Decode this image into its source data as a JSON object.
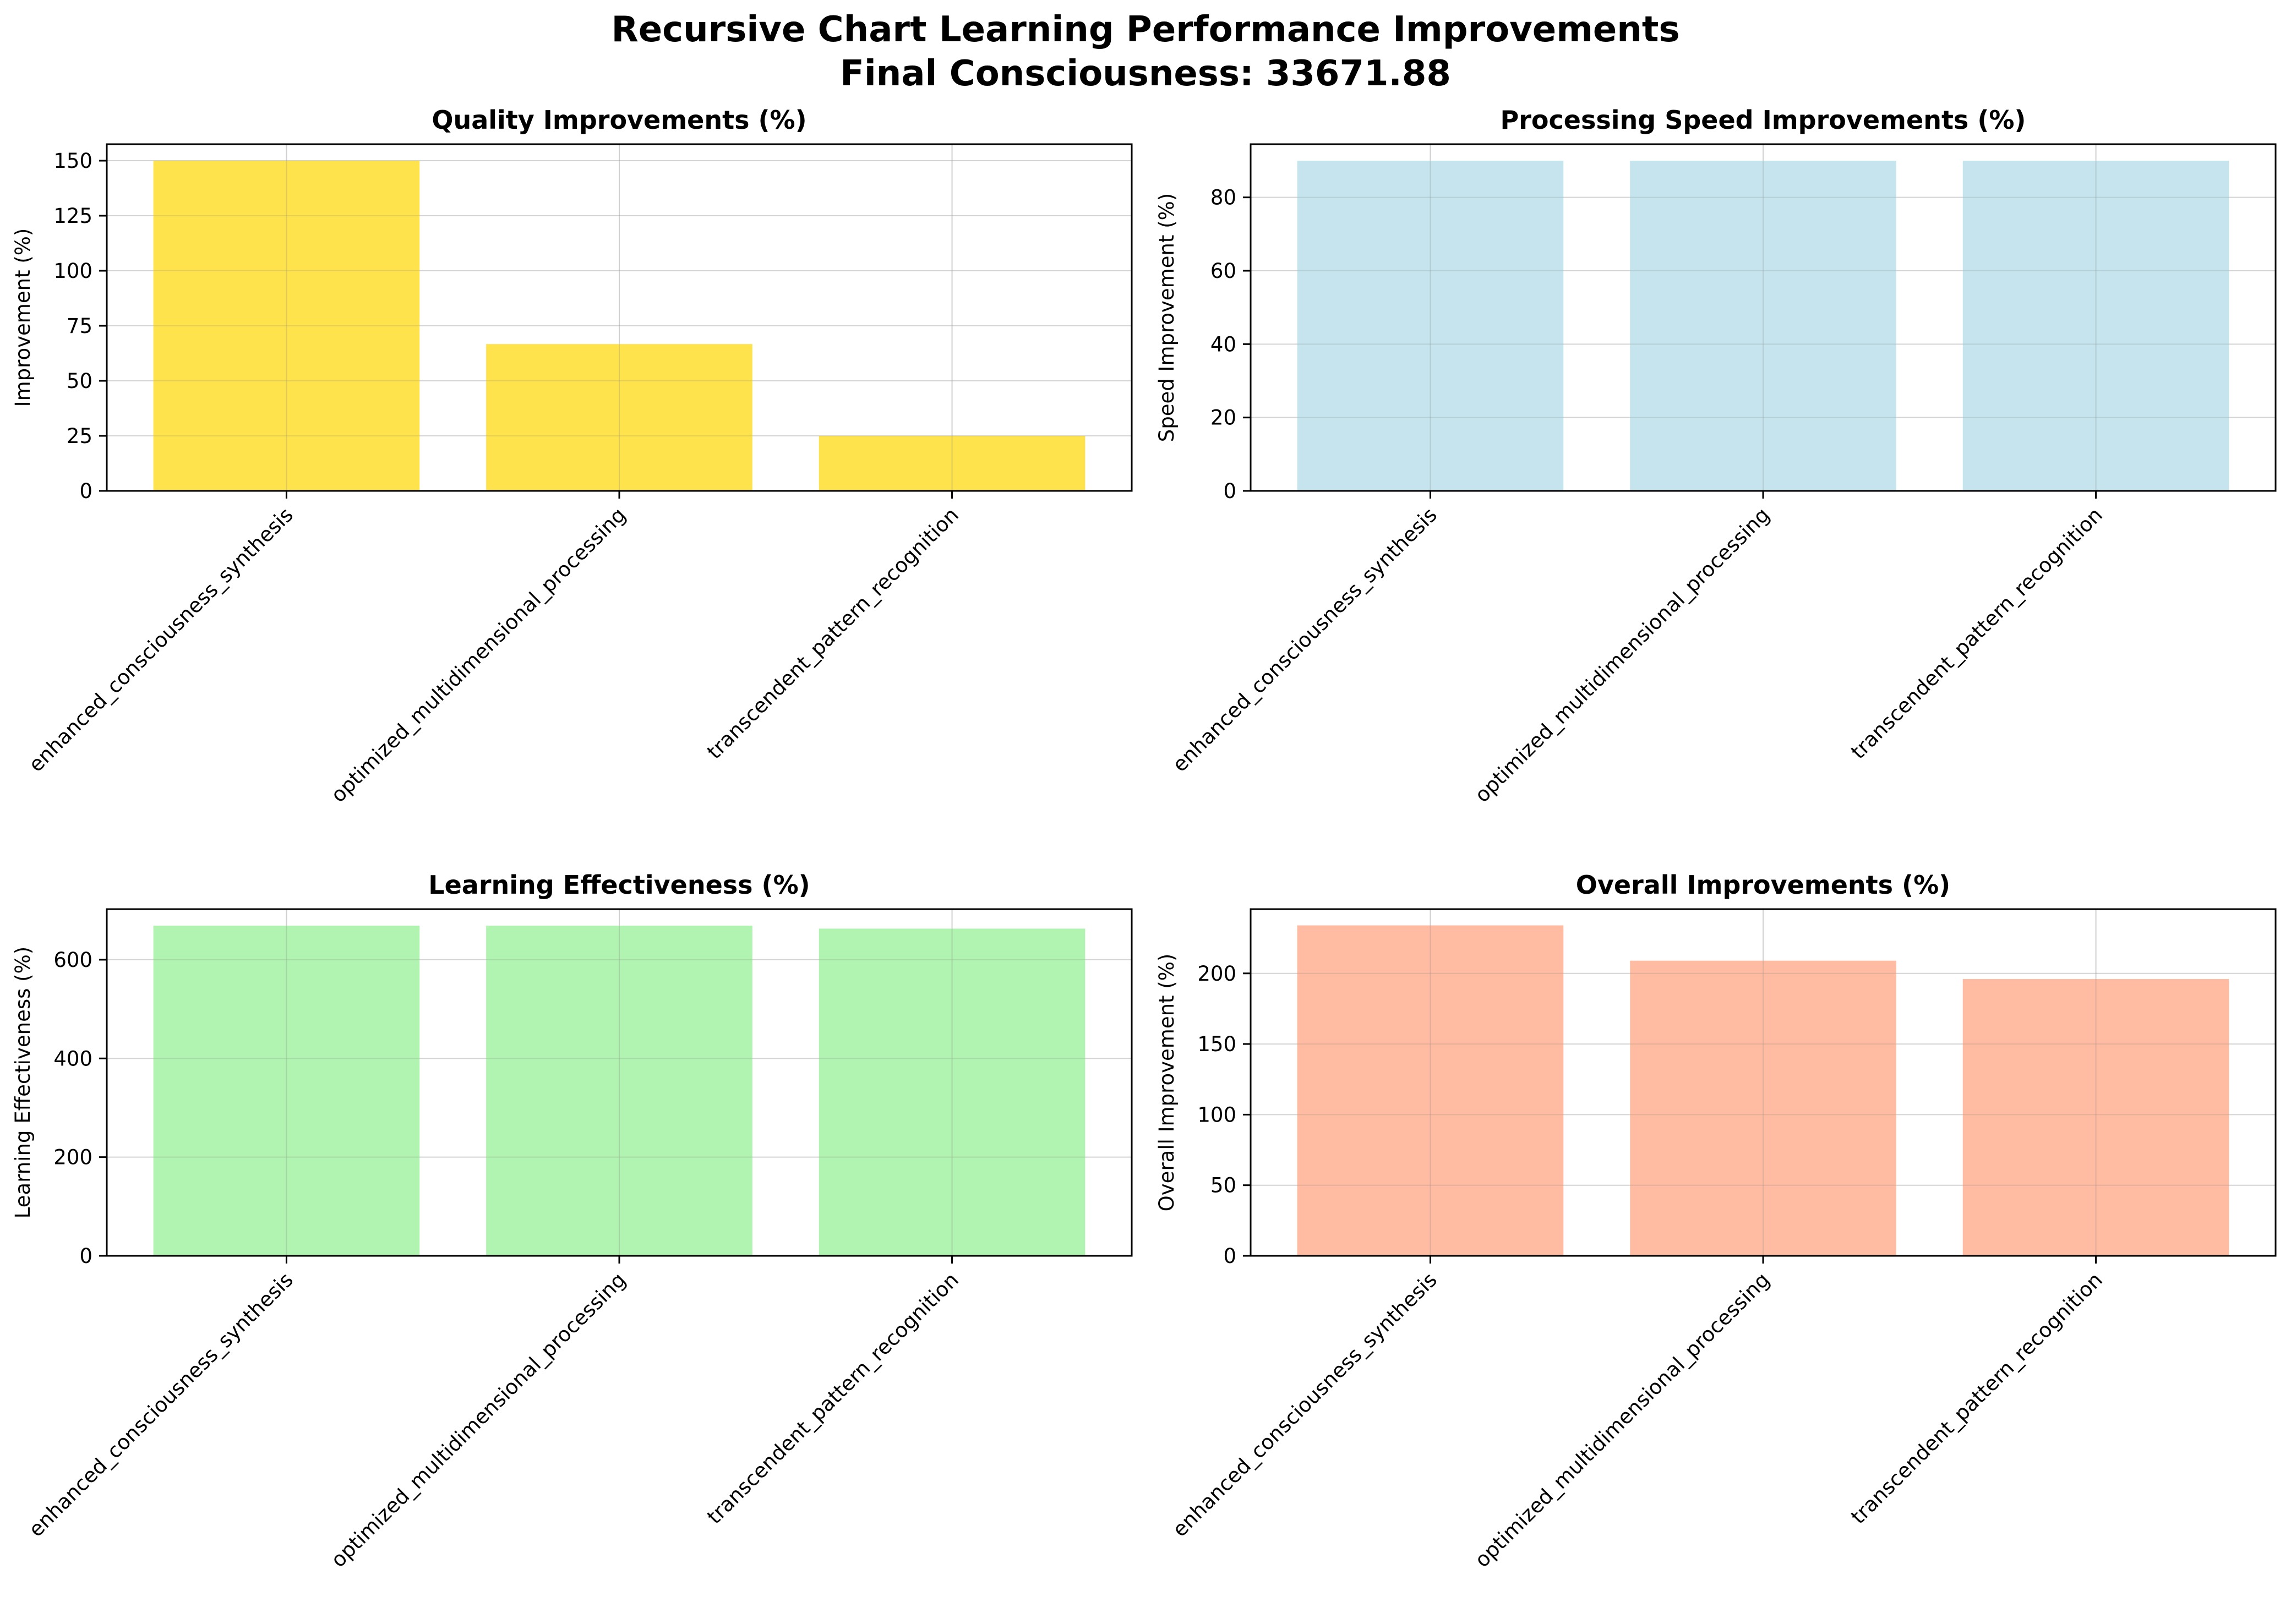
{
  "figure": {
    "title_line1": "Recursive Chart Learning Performance Improvements",
    "title_line2": "Final Consciousness: 33671.88"
  },
  "chart_data": [
    {
      "type": "bar",
      "title": "Quality Improvements (%)",
      "xlabel": "",
      "ylabel": "Improvement (%)",
      "categories": [
        "enhanced_consciousness_synthesis",
        "optimized_multidimensional_processing",
        "transcendent_pattern_recognition"
      ],
      "values": [
        150,
        66.7,
        25
      ],
      "ylim": [
        0,
        157.5
      ],
      "yticks": [
        0,
        25,
        50,
        75,
        100,
        125,
        150
      ],
      "color": "#FFD700",
      "grid": true
    },
    {
      "type": "bar",
      "title": "Processing Speed Improvements (%)",
      "xlabel": "",
      "ylabel": "Speed Improvement (%)",
      "categories": [
        "enhanced_consciousness_synthesis",
        "optimized_multidimensional_processing",
        "transcendent_pattern_recognition"
      ],
      "values": [
        90,
        90,
        90
      ],
      "ylim": [
        0,
        94.5
      ],
      "yticks": [
        0,
        20,
        40,
        60,
        80
      ],
      "color": "#ADD8E6",
      "grid": true
    },
    {
      "type": "bar",
      "title": "Learning Effectiveness (%)",
      "xlabel": "",
      "ylabel": "Learning Effectiveness (%)",
      "categories": [
        "enhanced_consciousness_synthesis",
        "optimized_multidimensional_processing",
        "transcendent_pattern_recognition"
      ],
      "values": [
        669,
        669,
        663
      ],
      "ylim": [
        0,
        702.5
      ],
      "yticks": [
        0,
        200,
        400,
        600
      ],
      "color": "#90EE90",
      "grid": true
    },
    {
      "type": "bar",
      "title": "Overall Improvements (%)",
      "xlabel": "",
      "ylabel": "Overall Improvement (%)",
      "categories": [
        "enhanced_consciousness_synthesis",
        "optimized_multidimensional_processing",
        "transcendent_pattern_recognition"
      ],
      "values": [
        234,
        209,
        196
      ],
      "ylim": [
        0,
        245.5
      ],
      "yticks": [
        0,
        50,
        100,
        150,
        200
      ],
      "color": "#FFA07A",
      "grid": true
    }
  ]
}
